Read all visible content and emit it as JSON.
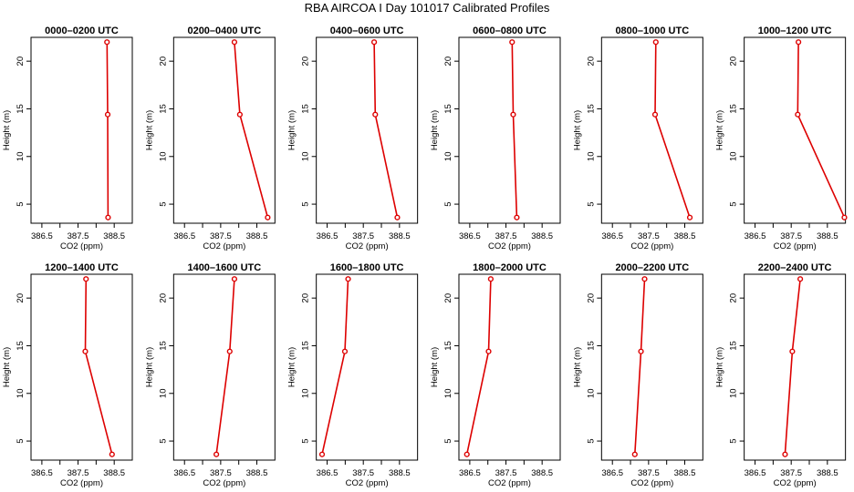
{
  "page_title": "RBA AIRCOA I  Day 101017  Calibrated Profiles",
  "colors": {
    "series": "#dd0000",
    "axis": "#000000"
  },
  "chart_data": [
    {
      "type": "line",
      "title": "0000–0200 UTC",
      "xlabel": "CO2 (ppm)",
      "ylabel": "Height (m)",
      "xlim": [
        386.2,
        389.0
      ],
      "ylim": [
        3,
        22.5
      ],
      "xticks": [
        "386.5",
        "387.5",
        "388.5"
      ],
      "xticks_minor": [
        387.0,
        388.0
      ],
      "yticks": [
        "5",
        "10",
        "15",
        "20"
      ],
      "x": [
        388.3,
        388.32,
        388.33
      ],
      "y": [
        22,
        14.4,
        3.6
      ]
    },
    {
      "type": "line",
      "title": "0200–0400 UTC",
      "xlabel": "CO2 (ppm)",
      "ylabel": "Height (m)",
      "xlim": [
        386.2,
        389.0
      ],
      "ylim": [
        3,
        22.5
      ],
      "xticks": [
        "386.5",
        "387.5",
        "388.5"
      ],
      "xticks_minor": [
        387.0,
        388.0
      ],
      "yticks": [
        "5",
        "10",
        "15",
        "20"
      ],
      "x": [
        387.88,
        388.03,
        388.8
      ],
      "y": [
        22,
        14.4,
        3.6
      ]
    },
    {
      "type": "line",
      "title": "0400–0600 UTC",
      "xlabel": "CO2 (ppm)",
      "ylabel": "Height (m)",
      "xlim": [
        386.2,
        389.0
      ],
      "ylim": [
        3,
        22.5
      ],
      "xticks": [
        "386.5",
        "387.5",
        "388.5"
      ],
      "xticks_minor": [
        387.0,
        388.0
      ],
      "yticks": [
        "5",
        "10",
        "15",
        "20"
      ],
      "x": [
        387.8,
        387.83,
        388.44
      ],
      "y": [
        22,
        14.4,
        3.6
      ]
    },
    {
      "type": "line",
      "title": "0600–0800 UTC",
      "xlabel": "CO2 (ppm)",
      "ylabel": "Height (m)",
      "xlim": [
        386.2,
        389.0
      ],
      "ylim": [
        3,
        22.5
      ],
      "xticks": [
        "386.5",
        "387.5",
        "388.5"
      ],
      "xticks_minor": [
        387.0,
        388.0
      ],
      "yticks": [
        "5",
        "10",
        "15",
        "20"
      ],
      "x": [
        387.67,
        387.7,
        387.8
      ],
      "y": [
        22,
        14.4,
        3.6
      ]
    },
    {
      "type": "line",
      "title": "0800–1000 UTC",
      "xlabel": "CO2 (ppm)",
      "ylabel": "Height (m)",
      "xlim": [
        386.2,
        389.0
      ],
      "ylim": [
        3,
        22.5
      ],
      "xticks": [
        "386.5",
        "387.5",
        "388.5"
      ],
      "xticks_minor": [
        387.0,
        388.0
      ],
      "yticks": [
        "5",
        "10",
        "15",
        "20"
      ],
      "x": [
        387.7,
        387.68,
        388.64
      ],
      "y": [
        22,
        14.4,
        3.6
      ]
    },
    {
      "type": "line",
      "title": "1000–1200 UTC",
      "xlabel": "CO2 (ppm)",
      "ylabel": "Height (m)",
      "xlim": [
        386.2,
        389.0
      ],
      "ylim": [
        3,
        22.5
      ],
      "xticks": [
        "386.5",
        "387.5",
        "388.5"
      ],
      "xticks_minor": [
        387.0,
        388.0
      ],
      "yticks": [
        "5",
        "10",
        "15",
        "20"
      ],
      "x": [
        387.7,
        387.68,
        388.97
      ],
      "y": [
        22,
        14.4,
        3.6
      ]
    },
    {
      "type": "line",
      "title": "1200–1400 UTC",
      "xlabel": "CO2 (ppm)",
      "ylabel": "Height (m)",
      "xlim": [
        386.2,
        389.0
      ],
      "ylim": [
        3,
        22.5
      ],
      "xticks": [
        "386.5",
        "387.5",
        "388.5"
      ],
      "xticks_minor": [
        387.0,
        388.0
      ],
      "yticks": [
        "5",
        "10",
        "15",
        "20"
      ],
      "x": [
        387.72,
        387.7,
        388.44
      ],
      "y": [
        22,
        14.4,
        3.6
      ]
    },
    {
      "type": "line",
      "title": "1400–1600 UTC",
      "xlabel": "CO2 (ppm)",
      "ylabel": "Height (m)",
      "xlim": [
        386.2,
        389.0
      ],
      "ylim": [
        3,
        22.5
      ],
      "xticks": [
        "386.5",
        "387.5",
        "388.5"
      ],
      "xticks_minor": [
        387.0,
        388.0
      ],
      "yticks": [
        "5",
        "10",
        "15",
        "20"
      ],
      "x": [
        387.88,
        387.75,
        387.38
      ],
      "y": [
        22,
        14.4,
        3.6
      ]
    },
    {
      "type": "line",
      "title": "1600–1800 UTC",
      "xlabel": "CO2 (ppm)",
      "ylabel": "Height (m)",
      "xlim": [
        386.2,
        389.0
      ],
      "ylim": [
        3,
        22.5
      ],
      "xticks": [
        "386.5",
        "387.5",
        "388.5"
      ],
      "xticks_minor": [
        387.0,
        388.0
      ],
      "yticks": [
        "5",
        "10",
        "15",
        "20"
      ],
      "x": [
        387.08,
        386.99,
        386.36
      ],
      "y": [
        22,
        14.4,
        3.6
      ]
    },
    {
      "type": "line",
      "title": "1800–2000 UTC",
      "xlabel": "CO2 (ppm)",
      "ylabel": "Height (m)",
      "xlim": [
        386.2,
        389.0
      ],
      "ylim": [
        3,
        22.5
      ],
      "xticks": [
        "386.5",
        "387.5",
        "388.5"
      ],
      "xticks_minor": [
        387.0,
        388.0
      ],
      "yticks": [
        "5",
        "10",
        "15",
        "20"
      ],
      "x": [
        387.08,
        387.02,
        386.42
      ],
      "y": [
        22,
        14.4,
        3.6
      ]
    },
    {
      "type": "line",
      "title": "2000–2200 UTC",
      "xlabel": "CO2 (ppm)",
      "ylabel": "Height (m)",
      "xlim": [
        386.2,
        389.0
      ],
      "ylim": [
        3,
        22.5
      ],
      "xticks": [
        "386.5",
        "387.5",
        "388.5"
      ],
      "xticks_minor": [
        387.0,
        388.0
      ],
      "yticks": [
        "5",
        "10",
        "15",
        "20"
      ],
      "x": [
        387.39,
        387.29,
        387.12
      ],
      "y": [
        22,
        14.4,
        3.6
      ]
    },
    {
      "type": "line",
      "title": "2200–2400 UTC",
      "xlabel": "CO2 (ppm)",
      "ylabel": "Height (m)",
      "xlim": [
        386.2,
        389.0
      ],
      "ylim": [
        3,
        22.5
      ],
      "xticks": [
        "386.5",
        "387.5",
        "388.5"
      ],
      "xticks_minor": [
        387.0,
        388.0
      ],
      "yticks": [
        "5",
        "10",
        "15",
        "20"
      ],
      "x": [
        387.75,
        387.53,
        387.33
      ],
      "y": [
        22,
        14.4,
        3.6
      ]
    }
  ]
}
